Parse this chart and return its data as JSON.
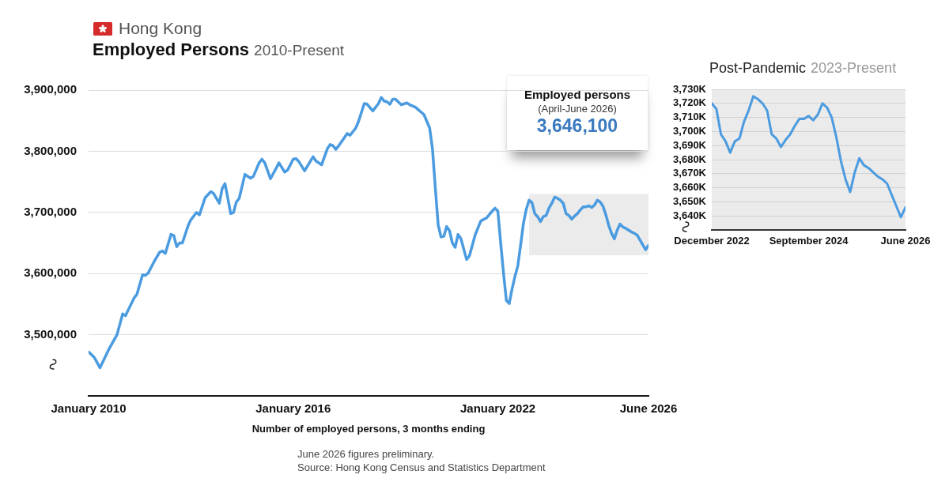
{
  "chart_data": [
    {
      "type": "line",
      "title": "Employed Persons",
      "subtitle": "2010-Present",
      "xlabel": "Number of employed persons, 3 months ending",
      "annotations": [
        "Hong Kong",
        "Employed persons",
        "(April-June 2026)",
        "3,646,100",
        "June 2026 figures preliminary.",
        "Source: Hong Kong Census and Statistics Department"
      ],
      "x": [
        "2010-01",
        "2010-03",
        "2010-05",
        "2010-08",
        "2010-11",
        "2011-01",
        "2011-02",
        "2011-03",
        "2011-05",
        "2011-06",
        "2011-08",
        "2011-09",
        "2011-10",
        "2011-12",
        "2012-02",
        "2012-03",
        "2012-04",
        "2012-06",
        "2012-07",
        "2012-08",
        "2012-09",
        "2012-10",
        "2012-12",
        "2013-01",
        "2013-03",
        "2013-04",
        "2013-06",
        "2013-08",
        "2013-09",
        "2013-11",
        "2013-12",
        "2014-01",
        "2014-02",
        "2014-03",
        "2014-04",
        "2014-05",
        "2014-06",
        "2014-08",
        "2014-10",
        "2014-11",
        "2015-01",
        "2015-02",
        "2015-03",
        "2015-05",
        "2015-08",
        "2015-10",
        "2015-11",
        "2016-01",
        "2016-02",
        "2016-03",
        "2016-05",
        "2016-08",
        "2016-09",
        "2016-11",
        "2017-01",
        "2017-02",
        "2017-03",
        "2017-04",
        "2017-05",
        "2017-08",
        "2017-09",
        "2017-11",
        "2017-12",
        "2018-02",
        "2018-03",
        "2018-05",
        "2018-07",
        "2018-08",
        "2018-09",
        "2018-10",
        "2018-11",
        "2018-12",
        "2019-01",
        "2019-03",
        "2019-05",
        "2019-06",
        "2019-08",
        "2019-11",
        "2019-12",
        "2020-01",
        "2020-02",
        "2020-03",
        "2020-04",
        "2020-05",
        "2020-06",
        "2020-07",
        "2020-08",
        "2020-09",
        "2020-10",
        "2020-11",
        "2020-12",
        "2021-02",
        "2021-03",
        "2021-05",
        "2021-07",
        "2021-09",
        "2021-11",
        "2021-12",
        "2022-01",
        "2022-02",
        "2022-03",
        "2022-04",
        "2022-05",
        "2022-06",
        "2022-07",
        "2022-08",
        "2022-09",
        "2022-10",
        "2022-11",
        "2022-12",
        "2023-01",
        "2023-02",
        "2023-03",
        "2023-04",
        "2023-05",
        "2023-06",
        "2023-07",
        "2023-08",
        "2023-09",
        "2023-10",
        "2023-11",
        "2023-12",
        "2024-01",
        "2024-02",
        "2024-03",
        "2024-04",
        "2024-05",
        "2024-06",
        "2024-07",
        "2024-08",
        "2024-09",
        "2024-10",
        "2024-11",
        "2024-12",
        "2025-01",
        "2025-02",
        "2025-03",
        "2025-04",
        "2025-05",
        "2025-06",
        "2025-07",
        "2025-08",
        "2025-09",
        "2025-10",
        "2025-11",
        "2025-12",
        "2026-01",
        "2026-02",
        "2026-03",
        "2026-04",
        "2026-05",
        "2026-06"
      ],
      "series": [
        {
          "color": "#4b9be0",
          "values": [
            3472000,
            3463000,
            3446000,
            3475000,
            3500000,
            3534000,
            3531000,
            3541000,
            3560000,
            3566000,
            3598000,
            3597000,
            3601000,
            3619000,
            3635000,
            3637000,
            3633000,
            3664000,
            3662000,
            3644000,
            3650000,
            3650000,
            3678000,
            3688000,
            3700000,
            3696000,
            3724000,
            3734000,
            3731000,
            3715000,
            3739000,
            3747000,
            3723000,
            3698000,
            3700000,
            3717000,
            3723000,
            3762000,
            3756000,
            3759000,
            3781000,
            3787000,
            3781000,
            3755000,
            3781000,
            3766000,
            3769000,
            3787000,
            3788000,
            3783000,
            3768000,
            3791000,
            3784000,
            3778000,
            3804000,
            3811000,
            3809000,
            3803000,
            3809000,
            3829000,
            3826000,
            3838000,
            3849000,
            3878000,
            3877000,
            3866000,
            3878000,
            3888000,
            3882000,
            3881000,
            3877000,
            3885000,
            3885000,
            3876000,
            3879000,
            3876000,
            3872000,
            3860000,
            3849000,
            3838000,
            3804000,
            3740000,
            3680000,
            3660000,
            3661000,
            3677000,
            3670000,
            3650000,
            3643000,
            3664000,
            3657000,
            3623000,
            3629000,
            3663000,
            3686000,
            3691000,
            3702000,
            3707000,
            3702000,
            3650000,
            3600000,
            3556000,
            3551000,
            3575000,
            3595000,
            3612000,
            3646000,
            3682000,
            3705000,
            3720000,
            3716000,
            3698000,
            3693000,
            3685000,
            3693000,
            3695000,
            3707000,
            3715000,
            3725000,
            3723000,
            3720000,
            3715000,
            3698000,
            3695000,
            3689000,
            3694000,
            3698000,
            3704000,
            3709000,
            3709000,
            3711000,
            3708000,
            3712000,
            3720000,
            3717000,
            3710000,
            3696000,
            3679000,
            3666000,
            3657000,
            3671000,
            3681000,
            3676000,
            3674000,
            3671000,
            3668000,
            3666000,
            3663000,
            3655000,
            3647000,
            3639000,
            3646100
          ]
        }
      ],
      "xlim": [
        "2010-01",
        "2026-06"
      ],
      "xticks": [
        {
          "value": "2010-01",
          "label": "January 2010"
        },
        {
          "value": "2016-01",
          "label": "January 2016"
        },
        {
          "value": "2022-01",
          "label": "January 2022"
        },
        {
          "value": "2026-06",
          "label": "June 2026"
        }
      ],
      "ylim": [
        3400000,
        3900000
      ],
      "yticks": [
        {
          "value": 3500000,
          "label": "3,500,000"
        },
        {
          "value": 3600000,
          "label": "3,600,000"
        },
        {
          "value": 3700000,
          "label": "3,700,000"
        },
        {
          "value": 3800000,
          "label": "3,800,000"
        },
        {
          "value": 3900000,
          "label": "3,900,000"
        }
      ],
      "grid": "y",
      "bands": [
        {
          "axis": "x",
          "from": "2022-12",
          "to": "2026-06",
          "color": "#ebebeb"
        }
      ]
    },
    {
      "type": "line",
      "title": "Post-Pandemic",
      "subtitle": "2023-Present",
      "x": [
        "2022-12",
        "2023-01",
        "2023-02",
        "2023-03",
        "2023-04",
        "2023-05",
        "2023-06",
        "2023-07",
        "2023-08",
        "2023-09",
        "2023-10",
        "2023-11",
        "2023-12",
        "2024-01",
        "2024-02",
        "2024-03",
        "2024-04",
        "2024-05",
        "2024-06",
        "2024-07",
        "2024-08",
        "2024-09",
        "2024-10",
        "2024-11",
        "2024-12",
        "2025-01",
        "2025-02",
        "2025-03",
        "2025-04",
        "2025-05",
        "2025-06",
        "2025-07",
        "2025-08",
        "2025-09",
        "2025-10",
        "2025-11",
        "2025-12",
        "2026-01",
        "2026-02",
        "2026-03",
        "2026-04",
        "2026-05",
        "2026-06"
      ],
      "series": [
        {
          "color": "#4b9be0",
          "values": [
            3720000,
            3716000,
            3698000,
            3693000,
            3685000,
            3693000,
            3695000,
            3707000,
            3715000,
            3725000,
            3723000,
            3720000,
            3715000,
            3698000,
            3695000,
            3689000,
            3694000,
            3698000,
            3704000,
            3709000,
            3709000,
            3711000,
            3708000,
            3712000,
            3720000,
            3717000,
            3710000,
            3696000,
            3679000,
            3666000,
            3657000,
            3671000,
            3681000,
            3676000,
            3674000,
            3671000,
            3668000,
            3666000,
            3663000,
            3655000,
            3647000,
            3639000,
            3646100
          ]
        }
      ],
      "xlim": [
        "2022-12",
        "2026-06"
      ],
      "xticks": [
        {
          "value": "2022-12",
          "label": "December 2022"
        },
        {
          "value": "2024-09",
          "label": "September 2024"
        },
        {
          "value": "2026-06",
          "label": "June 2026"
        }
      ],
      "ylim": [
        3630000,
        3730000
      ],
      "yticks": [
        {
          "value": 3640000,
          "label": "3,640K"
        },
        {
          "value": 3650000,
          "label": "3,650K"
        },
        {
          "value": 3660000,
          "label": "3,660K"
        },
        {
          "value": 3670000,
          "label": "3,670K"
        },
        {
          "value": 3680000,
          "label": "3,680K"
        },
        {
          "value": 3690000,
          "label": "3,690K"
        },
        {
          "value": 3700000,
          "label": "3,700K"
        },
        {
          "value": 3710000,
          "label": "3,710K"
        },
        {
          "value": 3720000,
          "label": "3,720K"
        },
        {
          "value": 3730000,
          "label": "3,730K"
        }
      ],
      "grid": "y"
    }
  ]
}
